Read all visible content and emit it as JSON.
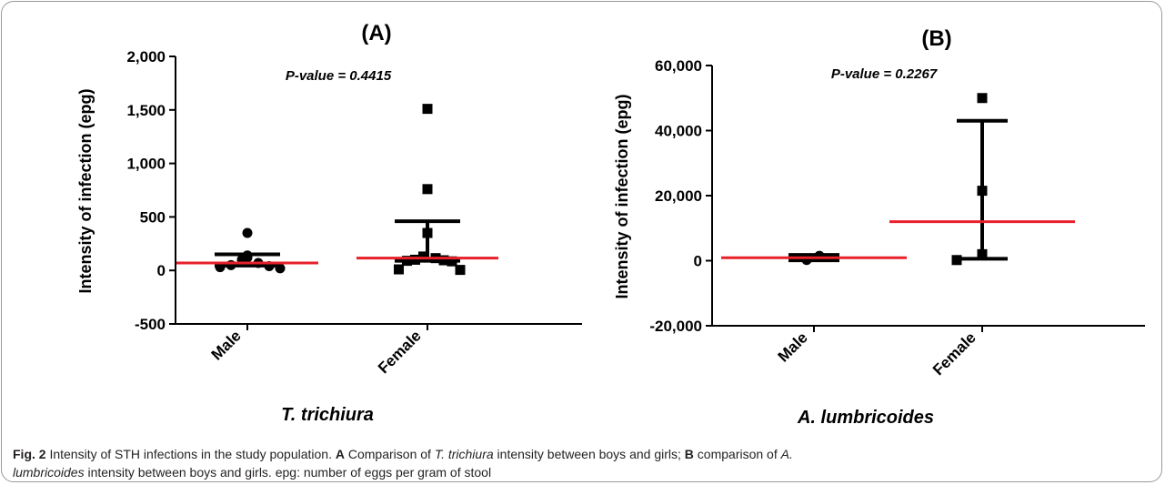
{
  "chart_data": [
    {
      "type": "scatter",
      "title": "(A)",
      "xlabel": "T. trichiura",
      "ylabel": "Intensity of infection (epg)",
      "ylim": [
        -500,
        2000
      ],
      "yticks": [
        "-500",
        "0",
        "500",
        "1,000",
        "1,500",
        "2,000"
      ],
      "ytick_values": [
        -500,
        0,
        500,
        1000,
        1500,
        2000
      ],
      "categories": [
        "Male",
        "Female"
      ],
      "annotation": "P-value = 0.4415",
      "grid": false,
      "series": [
        {
          "category": "Male",
          "marker": "circle",
          "points": [
            350,
            140,
            120,
            100,
            70,
            50,
            40,
            30,
            20
          ],
          "median": 70,
          "error_upper": 150,
          "error_lower": 45
        },
        {
          "category": "Female",
          "marker": "square",
          "points": [
            1510,
            760,
            350,
            130,
            115,
            100,
            95,
            90,
            85,
            10,
            5
          ],
          "median": 115,
          "error_upper": 460,
          "error_lower": 90
        }
      ],
      "colors": {
        "median": "#e8202a",
        "marker": "#000000"
      }
    },
    {
      "type": "scatter",
      "title": "(B)",
      "xlabel": "A. lumbricoides",
      "ylabel": "Intensity  of infection (epg)",
      "ylim": [
        -20000,
        60000
      ],
      "yticks": [
        "-20,000",
        "0",
        "20,000",
        "40,000",
        "60,000"
      ],
      "ytick_values": [
        -20000,
        0,
        20000,
        40000,
        60000
      ],
      "categories": [
        "Male",
        "Female"
      ],
      "annotation": "P-value = 0.2267",
      "grid": false,
      "series": [
        {
          "category": "Male",
          "marker": "circle",
          "points": [
            1500,
            200
          ],
          "median": 900,
          "error_upper": 1800,
          "error_lower": 100
        },
        {
          "category": "Female",
          "marker": "square",
          "points": [
            50000,
            21500,
            2000,
            200
          ],
          "median": 12000,
          "error_upper": 43000,
          "error_lower": 600
        }
      ],
      "colors": {
        "median": "#e8202a",
        "marker": "#000000"
      }
    }
  ],
  "caption": {
    "label": "Fig. 2",
    "text_1": "  Intensity of STH infections in the study population. ",
    "bold_a": "A",
    "text_2": " Comparison of ",
    "italic_1": "T. trichiura",
    "text_3": " intensity between boys and girls; ",
    "bold_b": "B",
    "text_4": " comparison of ",
    "italic_2": "A.",
    "italic_3": "lumbricoides",
    "text_5": " intensity between boys and girls. epg: number of eggs per gram of stool"
  }
}
